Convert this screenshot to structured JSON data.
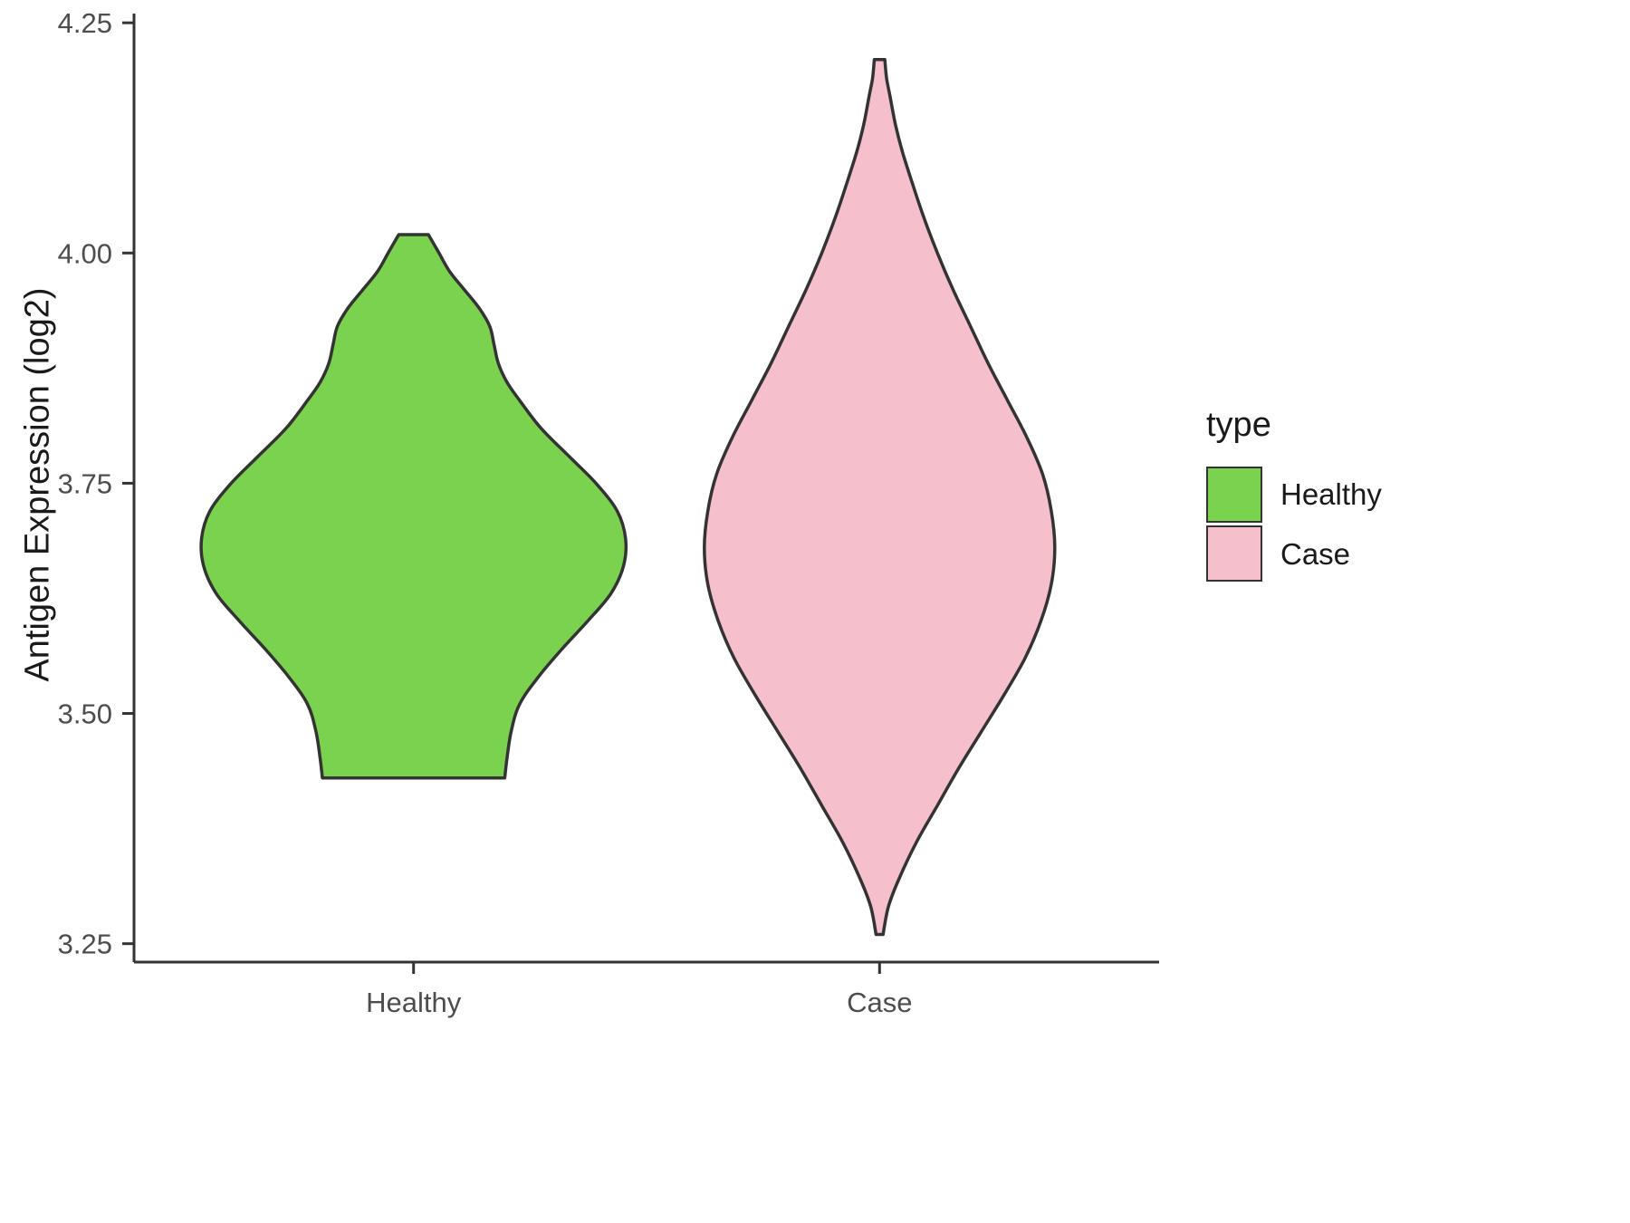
{
  "chart_data": {
    "type": "violin",
    "title": "",
    "xlabel": "",
    "ylabel": "Antigen Expression (log2)",
    "ylim": [
      3.23,
      4.26
    ],
    "yticks": [
      3.25,
      3.5,
      3.75,
      4.0,
      4.25
    ],
    "categories": [
      "Healthy",
      "Case"
    ],
    "grid": false,
    "stroke_color": "#333333",
    "legend": {
      "title": "type",
      "position": "right",
      "entries": [
        {
          "label": "Healthy",
          "color": "#7BD24F"
        },
        {
          "label": "Case",
          "color": "#F6BFCC"
        }
      ]
    },
    "series": [
      {
        "name": "Healthy",
        "color": "#7BD24F",
        "max_halfwidth": 0.455,
        "profile": [
          [
            4.02,
            0.07
          ],
          [
            4.0,
            0.12
          ],
          [
            3.98,
            0.17
          ],
          [
            3.96,
            0.24
          ],
          [
            3.94,
            0.31
          ],
          [
            3.92,
            0.36
          ],
          [
            3.9,
            0.38
          ],
          [
            3.88,
            0.4
          ],
          [
            3.86,
            0.44
          ],
          [
            3.84,
            0.5
          ],
          [
            3.81,
            0.6
          ],
          [
            3.78,
            0.73
          ],
          [
            3.75,
            0.86
          ],
          [
            3.72,
            0.96
          ],
          [
            3.69,
            1.0
          ],
          [
            3.66,
            0.99
          ],
          [
            3.63,
            0.93
          ],
          [
            3.6,
            0.82
          ],
          [
            3.57,
            0.7
          ],
          [
            3.54,
            0.59
          ],
          [
            3.51,
            0.5
          ],
          [
            3.48,
            0.46
          ],
          [
            3.45,
            0.44
          ],
          [
            3.43,
            0.43
          ]
        ]
      },
      {
        "name": "Case",
        "color": "#F6BFCC",
        "max_halfwidth": 0.376,
        "profile": [
          [
            4.21,
            0.03
          ],
          [
            4.19,
            0.04
          ],
          [
            4.17,
            0.06
          ],
          [
            4.14,
            0.09
          ],
          [
            4.11,
            0.13
          ],
          [
            4.08,
            0.18
          ],
          [
            4.04,
            0.25
          ],
          [
            4.0,
            0.33
          ],
          [
            3.96,
            0.42
          ],
          [
            3.92,
            0.52
          ],
          [
            3.88,
            0.62
          ],
          [
            3.84,
            0.73
          ],
          [
            3.8,
            0.84
          ],
          [
            3.76,
            0.93
          ],
          [
            3.72,
            0.98
          ],
          [
            3.68,
            1.0
          ],
          [
            3.64,
            0.98
          ],
          [
            3.6,
            0.92
          ],
          [
            3.56,
            0.83
          ],
          [
            3.52,
            0.71
          ],
          [
            3.48,
            0.58
          ],
          [
            3.44,
            0.45
          ],
          [
            3.4,
            0.33
          ],
          [
            3.36,
            0.21
          ],
          [
            3.32,
            0.11
          ],
          [
            3.29,
            0.05
          ],
          [
            3.26,
            0.02
          ]
        ]
      }
    ]
  }
}
